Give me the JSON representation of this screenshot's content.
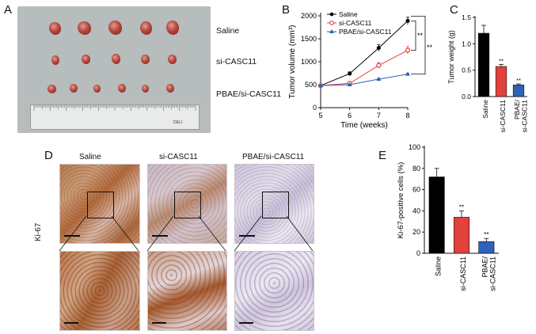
{
  "panels": {
    "a": "A",
    "b": "B",
    "c": "C",
    "d": "D",
    "e": "E"
  },
  "panel_a": {
    "row_labels": [
      "Saline",
      "si-CASC11",
      "PBAE/si-CASC11"
    ],
    "ruler_text": "DELI"
  },
  "panel_d": {
    "column_labels": [
      "Saline",
      "si-CASC11",
      "PBAE/si-CASC11"
    ],
    "row_label": "Ki-67"
  },
  "colors": {
    "saline": "#000000",
    "si": "#e3413b",
    "pbae": "#2f62b8"
  },
  "chart_data": [
    {
      "id": "B",
      "type": "line",
      "xlabel": "Time (weeks)",
      "ylabel": "Tumor volume (mm³)",
      "x": [
        5,
        6,
        7,
        8
      ],
      "xlim": [
        5,
        8
      ],
      "ylim": [
        0,
        2000
      ],
      "yticks": [
        0,
        500,
        1000,
        1500,
        2000
      ],
      "series": [
        {
          "name": "Saline",
          "values": [
            480,
            740,
            1300,
            1890
          ],
          "err": [
            20,
            40,
            70,
            80
          ],
          "marker": "circle",
          "color": "#000000"
        },
        {
          "name": "si-CASC11",
          "values": [
            480,
            530,
            920,
            1250
          ],
          "err": [
            20,
            30,
            60,
            80
          ],
          "marker": "circle-open",
          "color": "#e3413b"
        },
        {
          "name": "PBAE/si-CASC11",
          "values": [
            480,
            500,
            620,
            730
          ],
          "err": [
            10,
            15,
            20,
            20
          ],
          "marker": "triangle",
          "color": "#2f62b8"
        }
      ],
      "annotations": [
        "**",
        "**"
      ]
    },
    {
      "id": "C",
      "type": "bar",
      "ylabel": "Tumor weight (g)",
      "categories": [
        "Saline",
        "si-CASC11",
        "PBAE/\nsi-CASC11"
      ],
      "values": [
        1.2,
        0.57,
        0.22
      ],
      "err": [
        0.15,
        0.04,
        0.02
      ],
      "colors": [
        "#000000",
        "#e3413b",
        "#2f62b8"
      ],
      "ylim": [
        0,
        1.5
      ],
      "yticks": [
        "0.0",
        "0.5",
        "1.0",
        "1.5"
      ],
      "annotations": [
        "",
        "**",
        "**"
      ]
    },
    {
      "id": "E",
      "type": "bar",
      "ylabel": "Ki-67-positive cells (%)",
      "categories": [
        "Saline",
        "si-CASC11",
        "PBAE/\nsi-CASC11"
      ],
      "values": [
        72,
        34,
        11
      ],
      "err": [
        8,
        6,
        3
      ],
      "colors": [
        "#000000",
        "#e3413b",
        "#2f62b8"
      ],
      "ylim": [
        0,
        100
      ],
      "yticks": [
        "0",
        "20",
        "40",
        "60",
        "80",
        "100"
      ],
      "annotations": [
        "",
        "**",
        "**"
      ]
    }
  ]
}
